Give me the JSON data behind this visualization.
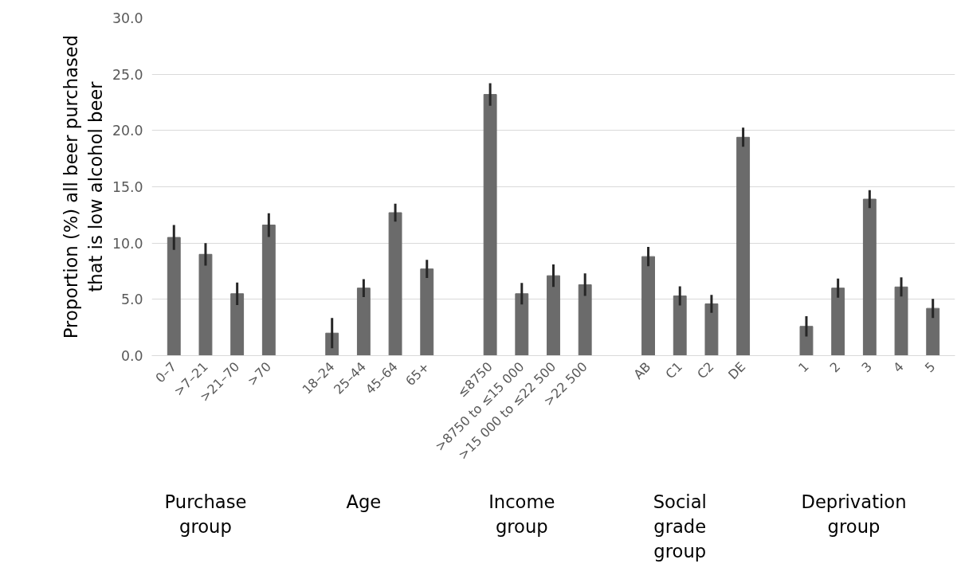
{
  "chart_data": {
    "type": "bar",
    "ylabel": "Proportion (%) all beer purchased\nthat is low alcohol beer",
    "categories": [
      "0–7",
      ">7–21",
      ">21–70",
      ">70",
      null,
      "18–24",
      "25–44",
      "45–64",
      "65+",
      null,
      "≤8750",
      ">8750 to ≤15 000",
      ">15 000 to ≤22 500",
      ">22 500",
      null,
      "AB",
      "C1",
      "C2",
      "DE",
      null,
      "1",
      "2",
      "3",
      "4",
      "5"
    ],
    "values": [
      10.5,
      9.0,
      5.5,
      11.6,
      null,
      2.0,
      6.0,
      12.7,
      7.7,
      null,
      23.2,
      5.5,
      7.1,
      6.3,
      null,
      8.8,
      5.3,
      4.6,
      19.4,
      null,
      2.6,
      6.0,
      13.9,
      6.1,
      4.2
    ],
    "errors": [
      1.1,
      1.0,
      1.0,
      1.05,
      null,
      1.35,
      0.8,
      0.8,
      0.8,
      null,
      1.0,
      0.95,
      1.0,
      1.0,
      null,
      0.85,
      0.85,
      0.8,
      0.85,
      null,
      0.9,
      0.85,
      0.8,
      0.85,
      0.85
    ],
    "color": "#6b6b6b",
    "ylim": [
      0,
      30
    ],
    "yticks": [
      {
        "value": 0,
        "label": "0.0"
      },
      {
        "value": 5,
        "label": "5.0"
      },
      {
        "value": 10,
        "label": "10.0"
      },
      {
        "value": 15,
        "label": "15.0"
      },
      {
        "value": 20,
        "label": "20.0"
      },
      {
        "value": 25,
        "label": "25.0"
      },
      {
        "value": 30,
        "label": "30.0"
      }
    ],
    "grid": "y",
    "annotations": [
      "Purchase\ngroup",
      "Age",
      "Income\ngroup",
      "Social\ngrade\ngroup",
      "Deprivation\ngroup"
    ]
  }
}
